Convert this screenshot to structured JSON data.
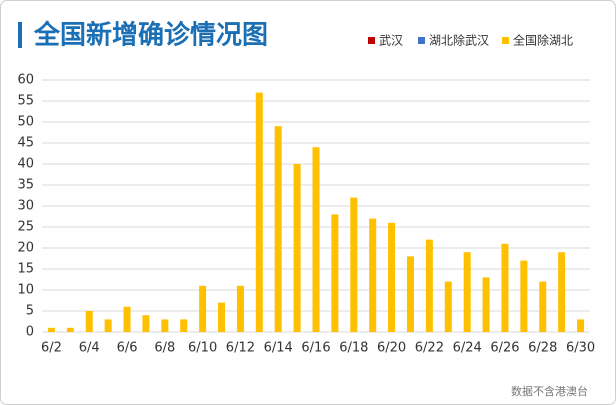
{
  "chart_data": {
    "type": "stacked_bar",
    "title": "全国新增确诊情况图",
    "note": "数据不含港澳台",
    "categories": [
      "6/2",
      null,
      "6/4",
      null,
      "6/6",
      null,
      "6/8",
      null,
      "6/10",
      null,
      "6/12",
      null,
      "6/14",
      null,
      "6/16",
      null,
      "6/18",
      null,
      "6/20",
      null,
      "6/22",
      null,
      "6/24",
      null,
      "6/26",
      null,
      "6/28",
      null,
      "6/30"
    ],
    "series": [
      {
        "name": "武汉",
        "color": "#c00000",
        "values": [
          0,
          0,
          0,
          0,
          0,
          0,
          0,
          0,
          0,
          0,
          0,
          0,
          0,
          0,
          0,
          0,
          0,
          0,
          0,
          0,
          0,
          0,
          0,
          0,
          0,
          0,
          0,
          0,
          0
        ]
      },
      {
        "name": "湖北除武汉",
        "color": "#4472c4",
        "values": [
          0,
          0,
          0,
          0,
          0,
          0,
          0,
          0,
          0,
          0,
          0,
          0,
          0,
          0,
          0,
          0,
          0,
          0,
          0,
          0,
          0,
          0,
          0,
          0,
          0,
          0,
          0,
          0,
          0
        ]
      },
      {
        "name": "全国除湖北",
        "color": "#ffc000",
        "values": [
          1,
          1,
          5,
          3,
          6,
          4,
          3,
          3,
          11,
          7,
          11,
          57,
          49,
          40,
          44,
          28,
          32,
          27,
          26,
          18,
          22,
          12,
          19,
          13,
          21,
          17,
          12,
          19,
          3
        ]
      }
    ],
    "ylim": [
      0,
      60
    ],
    "yticks": [
      0,
      5,
      10,
      15,
      20,
      25,
      30,
      35,
      40,
      45,
      50,
      55,
      60
    ],
    "grid": true,
    "legend": "top-right"
  }
}
